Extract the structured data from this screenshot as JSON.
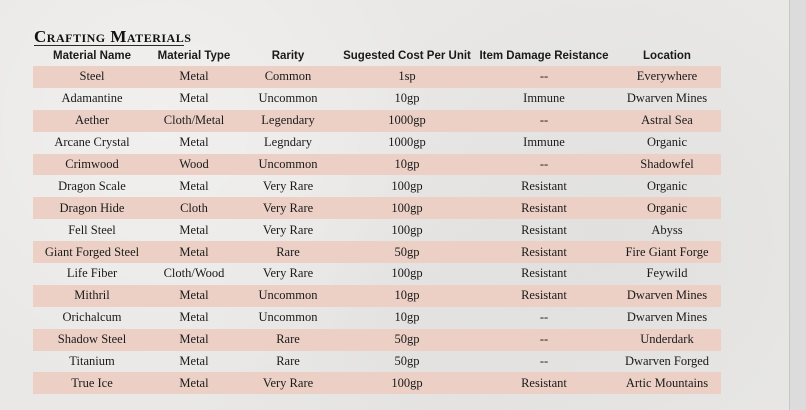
{
  "title": "Crafting Materials",
  "columns": [
    "Material Name",
    "Material Type",
    "Rarity",
    "Sugested Cost Per Unit",
    "Item Damage Reistance",
    "Location"
  ],
  "rows": [
    [
      "Steel",
      "Metal",
      "Common",
      "1sp",
      "--",
      "Everywhere"
    ],
    [
      "Adamantine",
      "Metal",
      "Uncommon",
      "10gp",
      "Immune",
      "Dwarven Mines"
    ],
    [
      "Aether",
      "Cloth/Metal",
      "Legendary",
      "1000gp",
      "--",
      "Astral Sea"
    ],
    [
      "Arcane Crystal",
      "Metal",
      "Legndary",
      "1000gp",
      "Immune",
      "Organic"
    ],
    [
      "Crimwood",
      "Wood",
      "Uncommon",
      "10gp",
      "--",
      "Shadowfel"
    ],
    [
      "Dragon Scale",
      "Metal",
      "Very Rare",
      "100gp",
      "Resistant",
      "Organic"
    ],
    [
      "Dragon Hide",
      "Cloth",
      "Very Rare",
      "100gp",
      "Resistant",
      "Organic"
    ],
    [
      "Fell Steel",
      "Metal",
      "Very Rare",
      "100gp",
      "Resistant",
      "Abyss"
    ],
    [
      "Giant Forged Steel",
      "Metal",
      "Rare",
      "50gp",
      "Resistant",
      "Fire Giant Forge"
    ],
    [
      "Life Fiber",
      "Cloth/Wood",
      "Very Rare",
      "100gp",
      "Resistant",
      "Feywild"
    ],
    [
      "Mithril",
      "Metal",
      "Uncommon",
      "10gp",
      "Resistant",
      "Dwarven Mines"
    ],
    [
      "Orichalcum",
      "Metal",
      "Uncommon",
      "10gp",
      "--",
      "Dwarven Mines"
    ],
    [
      "Shadow Steel",
      "Metal",
      "Rare",
      "50gp",
      "--",
      "Underdark"
    ],
    [
      "Titanium",
      "Metal",
      "Rare",
      "50gp",
      "--",
      "Dwarven Forged"
    ],
    [
      "True Ice",
      "Metal",
      "Very Rare",
      "100gp",
      "Resistant",
      "Artic Mountains"
    ]
  ],
  "colors": {
    "stripe": "#ecd0c6",
    "background": "#e9e8e6"
  }
}
